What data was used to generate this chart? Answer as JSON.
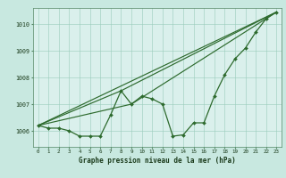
{
  "background_color": "#c8e8e0",
  "plot_bg_color": "#daf0ec",
  "grid_color": "#99ccbb",
  "line_color": "#2d6a2d",
  "title": "Graphe pression niveau de la mer (hPa)",
  "xlim": [
    -0.5,
    23.5
  ],
  "ylim": [
    1005.4,
    1010.6
  ],
  "yticks": [
    1006,
    1007,
    1008,
    1009,
    1010
  ],
  "xticks": [
    0,
    1,
    2,
    3,
    4,
    5,
    6,
    7,
    8,
    9,
    10,
    11,
    12,
    13,
    14,
    15,
    16,
    17,
    18,
    19,
    20,
    21,
    22,
    23
  ],
  "series": [
    {
      "x": [
        0,
        1,
        2,
        3,
        4,
        5,
        6,
        7,
        8,
        9,
        10,
        11,
        12,
        13,
        14,
        15,
        16,
        17,
        18,
        19,
        20,
        21,
        22,
        23
      ],
      "y": [
        1006.2,
        1006.1,
        1006.1,
        1006.0,
        1005.8,
        1005.8,
        1005.8,
        1006.6,
        1007.5,
        1007.0,
        1007.3,
        1007.2,
        1007.0,
        1005.8,
        1005.85,
        1006.3,
        1006.3,
        1007.3,
        1008.1,
        1008.7,
        1009.1,
        1009.7,
        1010.2,
        1010.45
      ],
      "marker": "D",
      "markersize": 2.0,
      "linewidth": 0.9,
      "draw_markers": true
    },
    {
      "x": [
        0,
        23
      ],
      "y": [
        1006.2,
        1010.45
      ],
      "marker": null,
      "markersize": 0,
      "linewidth": 0.85,
      "draw_markers": false
    },
    {
      "x": [
        0,
        9,
        23
      ],
      "y": [
        1006.2,
        1007.0,
        1010.45
      ],
      "marker": null,
      "markersize": 0,
      "linewidth": 0.85,
      "draw_markers": false
    },
    {
      "x": [
        0,
        8,
        23
      ],
      "y": [
        1006.2,
        1007.5,
        1010.45
      ],
      "marker": null,
      "markersize": 0,
      "linewidth": 0.85,
      "draw_markers": false
    }
  ]
}
